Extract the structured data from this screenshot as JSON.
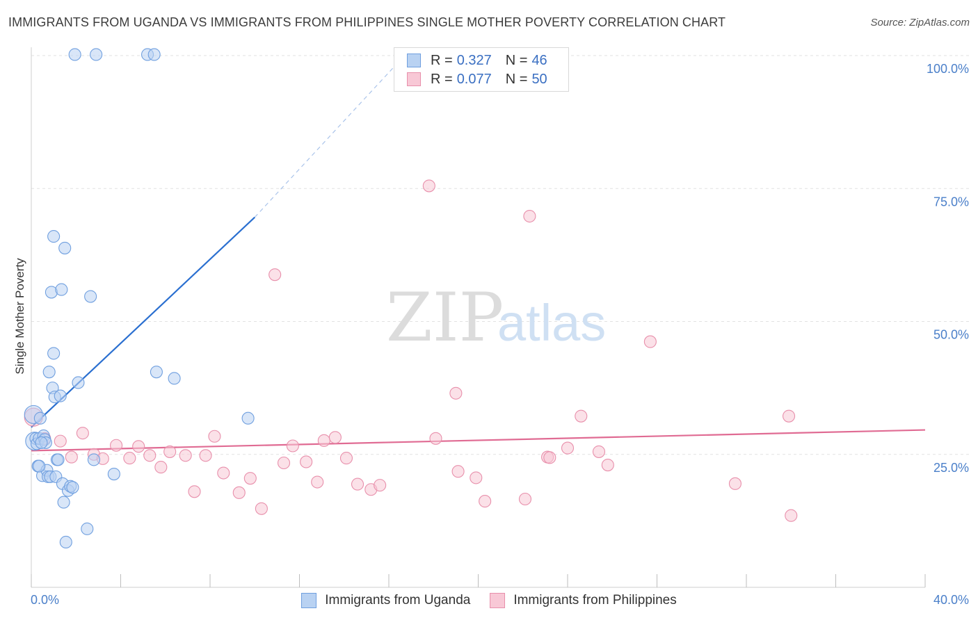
{
  "title": "IMMIGRANTS FROM UGANDA VS IMMIGRANTS FROM PHILIPPINES SINGLE MOTHER POVERTY CORRELATION CHART",
  "source": "Source: ZipAtlas.com",
  "watermark": {
    "zip": "ZIP",
    "atlas": "atlas"
  },
  "legend": {
    "r_label": "R =",
    "n_label": "N =",
    "uganda": {
      "r": "0.327",
      "n": "46"
    },
    "philippines": {
      "r": "0.077",
      "n": "50"
    }
  },
  "colors": {
    "uganda_fill": "#b9d2f2",
    "uganda_stroke": "#6f9fdf",
    "uganda_line": "#2a6fd0",
    "philippines_fill": "#f8c8d6",
    "philippines_stroke": "#e88fab",
    "philippines_line": "#e06b93",
    "tick_label": "#4a7fc9"
  },
  "chart_data": {
    "type": "scatter",
    "ylabel": "Single Mother Poverty",
    "xlim": [
      0,
      40
    ],
    "ylim": [
      0,
      100
    ],
    "x_tick_labels": [
      {
        "value": 0,
        "label": "0.0%"
      },
      {
        "value": 40,
        "label": "40.0%"
      }
    ],
    "y_tick_labels": [
      {
        "value": 25,
        "label": "25.0%"
      },
      {
        "value": 50,
        "label": "50.0%"
      },
      {
        "value": 75,
        "label": "75.0%"
      },
      {
        "value": 100,
        "label": "100.0%"
      }
    ],
    "grid": true,
    "legend_position": "top-center",
    "series": [
      {
        "name": "Immigrants from Uganda",
        "points": [
          [
            0.1,
            32.5
          ],
          [
            0.15,
            27.5
          ],
          [
            0.2,
            28
          ],
          [
            0.25,
            27
          ],
          [
            0.3,
            22.8
          ],
          [
            0.35,
            28
          ],
          [
            0.4,
            31.8
          ],
          [
            0.5,
            21
          ],
          [
            0.55,
            28.5
          ],
          [
            0.6,
            27.8
          ],
          [
            0.65,
            27.2
          ],
          [
            0.7,
            22
          ],
          [
            0.75,
            20.8
          ],
          [
            0.8,
            40.5
          ],
          [
            0.85,
            20.8
          ],
          [
            0.9,
            55.5
          ],
          [
            0.95,
            37.5
          ],
          [
            1.0,
            66
          ],
          [
            1.0,
            44
          ],
          [
            1.05,
            35.8
          ],
          [
            1.1,
            20.8
          ],
          [
            1.15,
            24
          ],
          [
            1.2,
            24
          ],
          [
            1.3,
            36
          ],
          [
            1.35,
            56
          ],
          [
            1.4,
            19.5
          ],
          [
            1.45,
            16
          ],
          [
            1.5,
            63.8
          ],
          [
            1.55,
            8.5
          ],
          [
            1.65,
            18.2
          ],
          [
            1.75,
            19
          ],
          [
            1.85,
            18.8
          ],
          [
            2.1,
            38.5
          ],
          [
            2.5,
            11
          ],
          [
            2.65,
            54.7
          ],
          [
            2.8,
            24
          ],
          [
            2.9,
            100.2
          ],
          [
            3.7,
            21.3
          ],
          [
            5.2,
            100.2
          ],
          [
            5.5,
            100.2
          ],
          [
            5.6,
            40.5
          ],
          [
            6.4,
            39.3
          ],
          [
            9.7,
            31.8
          ],
          [
            1.95,
            100.2
          ],
          [
            0.45,
            27.2
          ],
          [
            0.35,
            22.8
          ]
        ]
      },
      {
        "name": "Immigrants from Philippines",
        "points": [
          [
            0.1,
            32
          ],
          [
            0.6,
            28
          ],
          [
            1.3,
            27.5
          ],
          [
            1.8,
            24.5
          ],
          [
            2.3,
            29
          ],
          [
            2.8,
            25
          ],
          [
            3.2,
            24.2
          ],
          [
            3.8,
            26.7
          ],
          [
            4.4,
            24.3
          ],
          [
            4.8,
            26.5
          ],
          [
            5.3,
            24.8
          ],
          [
            5.8,
            22.6
          ],
          [
            6.2,
            25.5
          ],
          [
            6.9,
            24.8
          ],
          [
            7.3,
            18
          ],
          [
            7.8,
            24.8
          ],
          [
            8.2,
            28.4
          ],
          [
            8.6,
            21.5
          ],
          [
            9.3,
            17.8
          ],
          [
            9.8,
            20.5
          ],
          [
            10.3,
            14.8
          ],
          [
            10.9,
            58.8
          ],
          [
            11.3,
            23.4
          ],
          [
            11.7,
            26.6
          ],
          [
            12.3,
            23.6
          ],
          [
            12.8,
            19.8
          ],
          [
            13.1,
            27.6
          ],
          [
            13.6,
            28.2
          ],
          [
            14.1,
            24.3
          ],
          [
            14.6,
            19.4
          ],
          [
            15.2,
            18.4
          ],
          [
            15.6,
            19.2
          ],
          [
            17.8,
            75.5
          ],
          [
            18.1,
            28
          ],
          [
            19.0,
            36.5
          ],
          [
            19.1,
            21.8
          ],
          [
            19.9,
            20.6
          ],
          [
            20.3,
            16.2
          ],
          [
            22.1,
            16.6
          ],
          [
            22.3,
            69.8
          ],
          [
            23.1,
            24.5
          ],
          [
            23.2,
            24.4
          ],
          [
            24.0,
            26.2
          ],
          [
            24.6,
            32.2
          ],
          [
            25.4,
            25.5
          ],
          [
            25.8,
            23
          ],
          [
            27.7,
            46.2
          ],
          [
            31.5,
            19.5
          ],
          [
            33.9,
            32.2
          ],
          [
            34.0,
            13.5
          ]
        ]
      }
    ],
    "trendlines": [
      {
        "series": "Immigrants from Uganda",
        "x": [
          0,
          10
        ],
        "y": [
          30.1,
          69.6
        ],
        "dashed_extension_to": [
          16.7,
          100
        ]
      },
      {
        "series": "Immigrants from Philippines",
        "x": [
          0,
          40
        ],
        "y": [
          25.7,
          29.6
        ]
      }
    ]
  }
}
